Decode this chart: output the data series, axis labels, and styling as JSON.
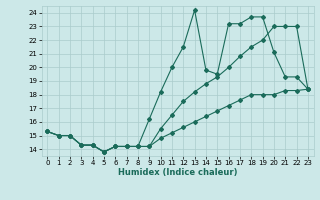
{
  "xlabel": "Humidex (Indice chaleur)",
  "bg_color": "#cce8e8",
  "grid_color": "#aacccc",
  "line_color": "#1a6b5a",
  "xlim": [
    -0.5,
    23.5
  ],
  "ylim": [
    13.5,
    24.5
  ],
  "yticks": [
    14,
    15,
    16,
    17,
    18,
    19,
    20,
    21,
    22,
    23,
    24
  ],
  "xticks": [
    0,
    1,
    2,
    3,
    4,
    5,
    6,
    7,
    8,
    9,
    10,
    11,
    12,
    13,
    14,
    15,
    16,
    17,
    18,
    19,
    20,
    21,
    22,
    23
  ],
  "line1_x": [
    0,
    1,
    2,
    3,
    4,
    5,
    6,
    7,
    8,
    9,
    10,
    11,
    12,
    13,
    14,
    15,
    16,
    17,
    18,
    19,
    20,
    21,
    22,
    23
  ],
  "line1_y": [
    15.3,
    15.0,
    15.0,
    14.3,
    14.3,
    13.8,
    14.2,
    14.2,
    14.2,
    16.2,
    18.2,
    20.0,
    21.5,
    24.2,
    19.8,
    19.5,
    23.2,
    23.2,
    23.7,
    23.7,
    21.1,
    19.3,
    19.3,
    18.4
  ],
  "line2_x": [
    0,
    1,
    2,
    3,
    4,
    5,
    6,
    7,
    8,
    9,
    10,
    11,
    12,
    13,
    14,
    15,
    16,
    17,
    18,
    19,
    20,
    21,
    22,
    23
  ],
  "line2_y": [
    15.3,
    15.0,
    15.0,
    14.3,
    14.3,
    13.8,
    14.2,
    14.2,
    14.2,
    14.2,
    15.5,
    16.5,
    17.5,
    18.2,
    18.8,
    19.3,
    20.0,
    20.8,
    21.5,
    22.0,
    23.0,
    23.0,
    23.0,
    18.4
  ],
  "line3_x": [
    0,
    1,
    2,
    3,
    4,
    5,
    6,
    7,
    8,
    9,
    10,
    11,
    12,
    13,
    14,
    15,
    16,
    17,
    18,
    19,
    20,
    21,
    22,
    23
  ],
  "line3_y": [
    15.3,
    15.0,
    15.0,
    14.3,
    14.3,
    13.8,
    14.2,
    14.2,
    14.2,
    14.2,
    14.8,
    15.2,
    15.6,
    16.0,
    16.4,
    16.8,
    17.2,
    17.6,
    18.0,
    18.0,
    18.0,
    18.3,
    18.3,
    18.4
  ]
}
